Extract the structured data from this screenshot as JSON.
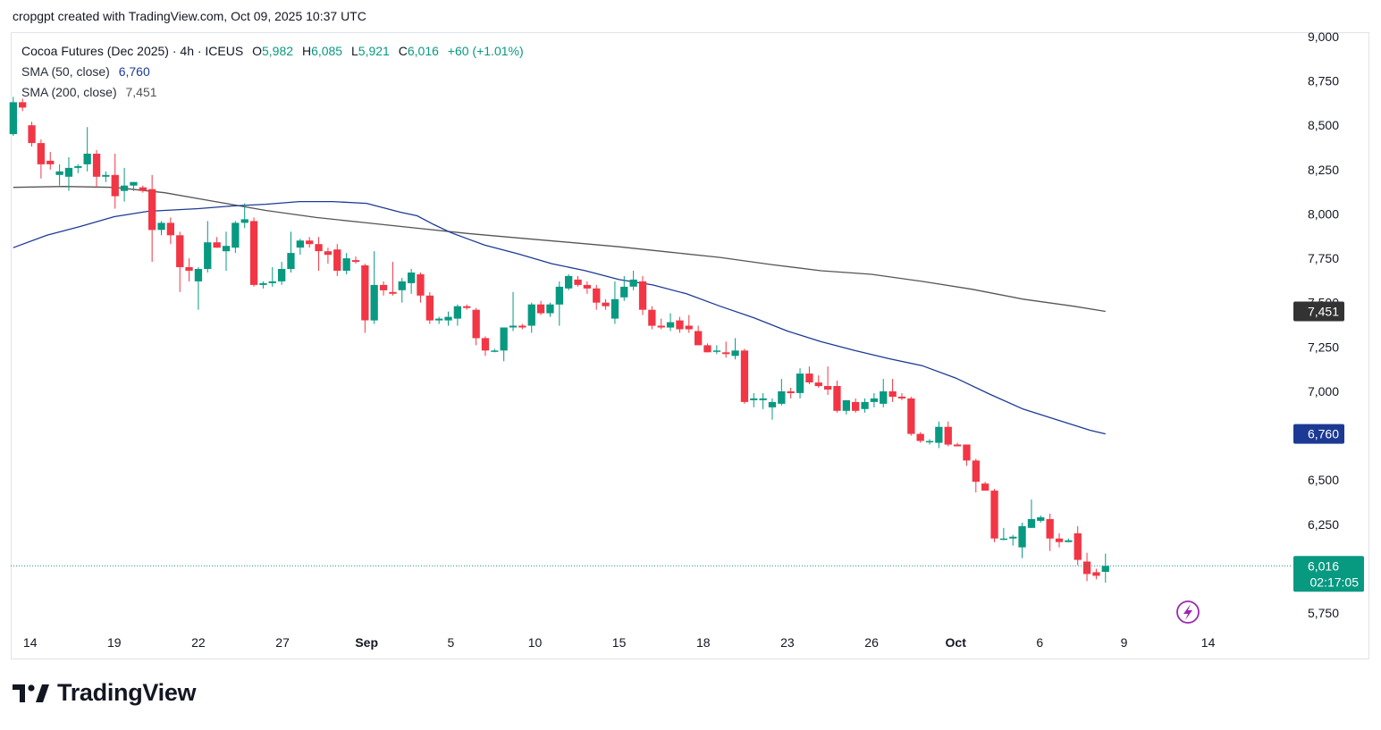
{
  "header": {
    "attribution": "cropgpt created with TradingView.com, Oct 09, 2025 10:37 UTC"
  },
  "legend": {
    "symbol": "Cocoa Futures (Dec 2025) · 4h · ICEUS",
    "o_label": "O",
    "o_value": "5,982",
    "h_label": "H",
    "h_value": "6,085",
    "l_label": "L",
    "l_value": "5,921",
    "c_label": "C",
    "c_value": "6,016",
    "change": "+60 (+1.01%)",
    "sma50_label": "SMA (50, close)",
    "sma50_value": "6,760",
    "sma200_label": "SMA (200, close)",
    "sma200_value": "7,451"
  },
  "price_tags": {
    "sma200": "7,451",
    "sma50": "6,760",
    "last": "6,016",
    "countdown": "02:17:05"
  },
  "brand": {
    "name": "TradingView"
  },
  "colors": {
    "up": "#089981",
    "down": "#f23645",
    "sma50": "#1c3a94",
    "sma200": "#555555",
    "last_tag": "#089981",
    "sma50_tag": "#1c3a94",
    "sma200_tag": "#333333"
  },
  "chart_data": {
    "type": "candlestick",
    "title": "Cocoa Futures (Dec 2025) · 4h · ICEUS",
    "y_ticks": [
      "9,000",
      "8,750",
      "8,500",
      "8,250",
      "8,000",
      "7,750",
      "7,500",
      "7,250",
      "7,000",
      "6,750",
      "6,500",
      "6,250",
      "6,000",
      "5,750"
    ],
    "ylim": [
      5680,
      9020
    ],
    "x_ticks": [
      {
        "label": "14",
        "x": 0.0,
        "bold": false
      },
      {
        "label": "19",
        "x": 5.0,
        "bold": false
      },
      {
        "label": "22",
        "x": 10.0,
        "bold": false
      },
      {
        "label": "27",
        "x": 15.0,
        "bold": false
      },
      {
        "label": "Sep",
        "x": 20.0,
        "bold": true
      },
      {
        "label": "5",
        "x": 25.0,
        "bold": false
      },
      {
        "label": "10",
        "x": 30.0,
        "bold": false
      },
      {
        "label": "15",
        "x": 35.0,
        "bold": false
      },
      {
        "label": "18",
        "x": 40.0,
        "bold": false
      },
      {
        "label": "23",
        "x": 45.0,
        "bold": false
      },
      {
        "label": "26",
        "x": 50.0,
        "bold": false
      },
      {
        "label": "Oct",
        "x": 55.0,
        "bold": true
      },
      {
        "label": "6",
        "x": 60.0,
        "bold": false
      },
      {
        "label": "9",
        "x": 65.0,
        "bold": false
      },
      {
        "label": "14",
        "x": 70.0,
        "bold": false
      }
    ],
    "xlim": [
      -1.15,
      74.8
    ],
    "candles": [
      {
        "x": -1.0,
        "o": 8450,
        "h": 8660,
        "l": 8440,
        "c": 8630
      },
      {
        "x": -0.45,
        "o": 8630,
        "h": 8650,
        "l": 8580,
        "c": 8600
      },
      {
        "x": 0.1,
        "o": 8500,
        "h": 8520,
        "l": 8380,
        "c": 8400
      },
      {
        "x": 0.65,
        "o": 8400,
        "h": 8420,
        "l": 8200,
        "c": 8280
      },
      {
        "x": 1.2,
        "o": 8300,
        "h": 8350,
        "l": 8250,
        "c": 8280
      },
      {
        "x": 1.75,
        "o": 8220,
        "h": 8280,
        "l": 8160,
        "c": 8240
      },
      {
        "x": 2.3,
        "o": 8210,
        "h": 8320,
        "l": 8130,
        "c": 8260
      },
      {
        "x": 2.85,
        "o": 8260,
        "h": 8280,
        "l": 8230,
        "c": 8270
      },
      {
        "x": 3.4,
        "o": 8280,
        "h": 8490,
        "l": 8240,
        "c": 8340
      },
      {
        "x": 3.95,
        "o": 8340,
        "h": 8360,
        "l": 8150,
        "c": 8210
      },
      {
        "x": 4.5,
        "o": 8210,
        "h": 8240,
        "l": 8180,
        "c": 8220
      },
      {
        "x": 5.05,
        "o": 8220,
        "h": 8340,
        "l": 8030,
        "c": 8100
      },
      {
        "x": 5.6,
        "o": 8130,
        "h": 8260,
        "l": 8070,
        "c": 8160
      },
      {
        "x": 6.15,
        "o": 8160,
        "h": 8180,
        "l": 8130,
        "c": 8180
      },
      {
        "x": 6.7,
        "o": 8150,
        "h": 8160,
        "l": 8120,
        "c": 8130
      },
      {
        "x": 7.25,
        "o": 8140,
        "h": 8220,
        "l": 7730,
        "c": 7910
      },
      {
        "x": 7.8,
        "o": 7910,
        "h": 7960,
        "l": 7880,
        "c": 7950
      },
      {
        "x": 8.35,
        "o": 7950,
        "h": 7980,
        "l": 7830,
        "c": 7880
      },
      {
        "x": 8.9,
        "o": 7880,
        "h": 7900,
        "l": 7560,
        "c": 7700
      },
      {
        "x": 9.45,
        "o": 7700,
        "h": 7750,
        "l": 7620,
        "c": 7680
      },
      {
        "x": 10.0,
        "o": 7620,
        "h": 7700,
        "l": 7460,
        "c": 7690
      },
      {
        "x": 10.55,
        "o": 7690,
        "h": 7960,
        "l": 7670,
        "c": 7840
      },
      {
        "x": 11.1,
        "o": 7840,
        "h": 7870,
        "l": 7810,
        "c": 7810
      },
      {
        "x": 11.65,
        "o": 7790,
        "h": 7900,
        "l": 7680,
        "c": 7820
      },
      {
        "x": 12.2,
        "o": 7810,
        "h": 7960,
        "l": 7780,
        "c": 7950
      },
      {
        "x": 12.75,
        "o": 7950,
        "h": 8060,
        "l": 7920,
        "c": 7970
      },
      {
        "x": 13.3,
        "o": 7960,
        "h": 7980,
        "l": 7590,
        "c": 7600
      },
      {
        "x": 13.85,
        "o": 7600,
        "h": 7620,
        "l": 7580,
        "c": 7610
      },
      {
        "x": 14.4,
        "o": 7610,
        "h": 7700,
        "l": 7590,
        "c": 7620
      },
      {
        "x": 14.95,
        "o": 7620,
        "h": 7730,
        "l": 7600,
        "c": 7690
      },
      {
        "x": 15.5,
        "o": 7690,
        "h": 7900,
        "l": 7670,
        "c": 7780
      },
      {
        "x": 16.05,
        "o": 7810,
        "h": 7860,
        "l": 7770,
        "c": 7850
      },
      {
        "x": 16.6,
        "o": 7850,
        "h": 7870,
        "l": 7810,
        "c": 7830
      },
      {
        "x": 17.15,
        "o": 7830,
        "h": 7870,
        "l": 7680,
        "c": 7790
      },
      {
        "x": 17.7,
        "o": 7790,
        "h": 7810,
        "l": 7720,
        "c": 7770
      },
      {
        "x": 18.25,
        "o": 7800,
        "h": 7830,
        "l": 7650,
        "c": 7680
      },
      {
        "x": 18.8,
        "o": 7680,
        "h": 7780,
        "l": 7660,
        "c": 7750
      },
      {
        "x": 19.35,
        "o": 7740,
        "h": 7760,
        "l": 7720,
        "c": 7730
      },
      {
        "x": 19.9,
        "o": 7710,
        "h": 7720,
        "l": 7330,
        "c": 7400
      },
      {
        "x": 20.45,
        "o": 7400,
        "h": 7790,
        "l": 7380,
        "c": 7600
      },
      {
        "x": 21.0,
        "o": 7600,
        "h": 7620,
        "l": 7540,
        "c": 7570
      },
      {
        "x": 21.55,
        "o": 7560,
        "h": 7730,
        "l": 7540,
        "c": 7550
      },
      {
        "x": 22.1,
        "o": 7570,
        "h": 7640,
        "l": 7500,
        "c": 7620
      },
      {
        "x": 22.65,
        "o": 7610,
        "h": 7690,
        "l": 7550,
        "c": 7670
      },
      {
        "x": 23.2,
        "o": 7660,
        "h": 7670,
        "l": 7500,
        "c": 7540
      },
      {
        "x": 23.75,
        "o": 7540,
        "h": 7560,
        "l": 7380,
        "c": 7400
      },
      {
        "x": 24.3,
        "o": 7400,
        "h": 7420,
        "l": 7380,
        "c": 7410
      },
      {
        "x": 24.85,
        "o": 7400,
        "h": 7450,
        "l": 7370,
        "c": 7420
      },
      {
        "x": 25.4,
        "o": 7410,
        "h": 7490,
        "l": 7370,
        "c": 7480
      },
      {
        "x": 25.95,
        "o": 7480,
        "h": 7490,
        "l": 7460,
        "c": 7470
      },
      {
        "x": 26.5,
        "o": 7460,
        "h": 7470,
        "l": 7260,
        "c": 7300
      },
      {
        "x": 27.05,
        "o": 7300,
        "h": 7310,
        "l": 7200,
        "c": 7230
      },
      {
        "x": 27.6,
        "o": 7230,
        "h": 7240,
        "l": 7220,
        "c": 7230
      },
      {
        "x": 28.15,
        "o": 7230,
        "h": 7340,
        "l": 7170,
        "c": 7360
      },
      {
        "x": 28.7,
        "o": 7360,
        "h": 7560,
        "l": 7340,
        "c": 7370
      },
      {
        "x": 29.25,
        "o": 7370,
        "h": 7380,
        "l": 7350,
        "c": 7360
      },
      {
        "x": 29.8,
        "o": 7370,
        "h": 7500,
        "l": 7330,
        "c": 7490
      },
      {
        "x": 30.35,
        "o": 7490,
        "h": 7510,
        "l": 7430,
        "c": 7440
      },
      {
        "x": 30.9,
        "o": 7440,
        "h": 7500,
        "l": 7420,
        "c": 7490
      },
      {
        "x": 31.45,
        "o": 7490,
        "h": 7620,
        "l": 7370,
        "c": 7590
      },
      {
        "x": 32.0,
        "o": 7580,
        "h": 7660,
        "l": 7570,
        "c": 7650
      },
      {
        "x": 32.55,
        "o": 7630,
        "h": 7650,
        "l": 7590,
        "c": 7600
      },
      {
        "x": 33.1,
        "o": 7600,
        "h": 7620,
        "l": 7550,
        "c": 7580
      },
      {
        "x": 33.65,
        "o": 7580,
        "h": 7600,
        "l": 7460,
        "c": 7500
      },
      {
        "x": 34.2,
        "o": 7500,
        "h": 7520,
        "l": 7460,
        "c": 7480
      },
      {
        "x": 34.75,
        "o": 7410,
        "h": 7620,
        "l": 7380,
        "c": 7520
      },
      {
        "x": 35.3,
        "o": 7530,
        "h": 7650,
        "l": 7510,
        "c": 7590
      },
      {
        "x": 35.85,
        "o": 7590,
        "h": 7680,
        "l": 7570,
        "c": 7630
      },
      {
        "x": 36.4,
        "o": 7620,
        "h": 7650,
        "l": 7430,
        "c": 7460
      },
      {
        "x": 36.95,
        "o": 7460,
        "h": 7480,
        "l": 7350,
        "c": 7370
      },
      {
        "x": 37.5,
        "o": 7370,
        "h": 7410,
        "l": 7350,
        "c": 7360
      },
      {
        "x": 38.05,
        "o": 7360,
        "h": 7440,
        "l": 7340,
        "c": 7390
      },
      {
        "x": 38.6,
        "o": 7400,
        "h": 7420,
        "l": 7330,
        "c": 7350
      },
      {
        "x": 39.15,
        "o": 7370,
        "h": 7430,
        "l": 7330,
        "c": 7350
      },
      {
        "x": 39.7,
        "o": 7340,
        "h": 7370,
        "l": 7260,
        "c": 7260
      },
      {
        "x": 40.25,
        "o": 7260,
        "h": 7270,
        "l": 7220,
        "c": 7220
      },
      {
        "x": 40.8,
        "o": 7230,
        "h": 7260,
        "l": 7210,
        "c": 7230
      },
      {
        "x": 41.35,
        "o": 7220,
        "h": 7280,
        "l": 7190,
        "c": 7210
      },
      {
        "x": 41.9,
        "o": 7200,
        "h": 7300,
        "l": 7180,
        "c": 7230
      },
      {
        "x": 42.45,
        "o": 7230,
        "h": 7240,
        "l": 6930,
        "c": 6940
      },
      {
        "x": 43.0,
        "o": 6950,
        "h": 6990,
        "l": 6910,
        "c": 6960
      },
      {
        "x": 43.55,
        "o": 6950,
        "h": 6990,
        "l": 6900,
        "c": 6960
      },
      {
        "x": 44.1,
        "o": 6910,
        "h": 6960,
        "l": 6840,
        "c": 6940
      },
      {
        "x": 44.65,
        "o": 6930,
        "h": 7070,
        "l": 6920,
        "c": 7000
      },
      {
        "x": 45.2,
        "o": 7000,
        "h": 7020,
        "l": 6960,
        "c": 6990
      },
      {
        "x": 45.75,
        "o": 6990,
        "h": 7130,
        "l": 6960,
        "c": 7100
      },
      {
        "x": 46.3,
        "o": 7100,
        "h": 7140,
        "l": 7040,
        "c": 7050
      },
      {
        "x": 46.85,
        "o": 7050,
        "h": 7090,
        "l": 7020,
        "c": 7030
      },
      {
        "x": 47.4,
        "o": 7030,
        "h": 7140,
        "l": 6980,
        "c": 7010
      },
      {
        "x": 47.95,
        "o": 7030,
        "h": 7060,
        "l": 6880,
        "c": 6890
      },
      {
        "x": 48.5,
        "o": 6890,
        "h": 6950,
        "l": 6870,
        "c": 6950
      },
      {
        "x": 49.05,
        "o": 6940,
        "h": 6960,
        "l": 6880,
        "c": 6890
      },
      {
        "x": 49.6,
        "o": 6900,
        "h": 6960,
        "l": 6880,
        "c": 6940
      },
      {
        "x": 50.15,
        "o": 6940,
        "h": 6990,
        "l": 6910,
        "c": 6960
      },
      {
        "x": 50.7,
        "o": 6930,
        "h": 7070,
        "l": 6910,
        "c": 7000
      },
      {
        "x": 51.25,
        "o": 7000,
        "h": 7070,
        "l": 6940,
        "c": 6970
      },
      {
        "x": 51.8,
        "o": 6970,
        "h": 6990,
        "l": 6950,
        "c": 6960
      },
      {
        "x": 52.35,
        "o": 6960,
        "h": 6970,
        "l": 6750,
        "c": 6760
      },
      {
        "x": 52.9,
        "o": 6760,
        "h": 6770,
        "l": 6710,
        "c": 6720
      },
      {
        "x": 53.45,
        "o": 6720,
        "h": 6730,
        "l": 6700,
        "c": 6720
      },
      {
        "x": 54.0,
        "o": 6710,
        "h": 6830,
        "l": 6680,
        "c": 6800
      },
      {
        "x": 54.55,
        "o": 6800,
        "h": 6830,
        "l": 6690,
        "c": 6700
      },
      {
        "x": 55.1,
        "o": 6700,
        "h": 6710,
        "l": 6690,
        "c": 6690
      },
      {
        "x": 55.65,
        "o": 6700,
        "h": 6700,
        "l": 6580,
        "c": 6610
      },
      {
        "x": 56.2,
        "o": 6610,
        "h": 6620,
        "l": 6430,
        "c": 6490
      },
      {
        "x": 56.75,
        "o": 6480,
        "h": 6490,
        "l": 6440,
        "c": 6440
      },
      {
        "x": 57.3,
        "o": 6440,
        "h": 6450,
        "l": 6150,
        "c": 6170
      },
      {
        "x": 57.85,
        "o": 6170,
        "h": 6230,
        "l": 6160,
        "c": 6170
      },
      {
        "x": 58.4,
        "o": 6170,
        "h": 6190,
        "l": 6130,
        "c": 6180
      },
      {
        "x": 58.95,
        "o": 6120,
        "h": 6260,
        "l": 6060,
        "c": 6240
      },
      {
        "x": 59.5,
        "o": 6230,
        "h": 6390,
        "l": 6230,
        "c": 6280
      },
      {
        "x": 60.05,
        "o": 6270,
        "h": 6300,
        "l": 6260,
        "c": 6290
      },
      {
        "x": 60.6,
        "o": 6280,
        "h": 6310,
        "l": 6100,
        "c": 6170
      },
      {
        "x": 61.15,
        "o": 6170,
        "h": 6200,
        "l": 6120,
        "c": 6150
      },
      {
        "x": 61.7,
        "o": 6150,
        "h": 6170,
        "l": 6150,
        "c": 6160
      },
      {
        "x": 62.25,
        "o": 6200,
        "h": 6240,
        "l": 6020,
        "c": 6050
      },
      {
        "x": 62.8,
        "o": 6040,
        "h": 6090,
        "l": 5930,
        "c": 5970
      },
      {
        "x": 63.35,
        "o": 5980,
        "h": 6000,
        "l": 5940,
        "c": 5960
      },
      {
        "x": 63.9,
        "o": 5982,
        "h": 6085,
        "l": 5921,
        "c": 6016
      }
    ],
    "sma50": [
      [
        -1.0,
        7810
      ],
      [
        1.0,
        7880
      ],
      [
        3.0,
        7930
      ],
      [
        5.0,
        7985
      ],
      [
        7.0,
        8015
      ],
      [
        10.0,
        8030
      ],
      [
        12.0,
        8045
      ],
      [
        14.0,
        8055
      ],
      [
        16.0,
        8070
      ],
      [
        18.0,
        8070
      ],
      [
        20.0,
        8060
      ],
      [
        22.0,
        8010
      ],
      [
        23.0,
        7990
      ],
      [
        24.0,
        7940
      ],
      [
        25.0,
        7895
      ],
      [
        26.0,
        7860
      ],
      [
        27.0,
        7825
      ],
      [
        29.0,
        7775
      ],
      [
        31.0,
        7720
      ],
      [
        33.0,
        7680
      ],
      [
        35.0,
        7630
      ],
      [
        37.0,
        7600
      ],
      [
        39.0,
        7550
      ],
      [
        41.0,
        7480
      ],
      [
        43.0,
        7415
      ],
      [
        45.0,
        7340
      ],
      [
        47.0,
        7280
      ],
      [
        49.0,
        7230
      ],
      [
        51.0,
        7185
      ],
      [
        53.0,
        7145
      ],
      [
        55.0,
        7075
      ],
      [
        57.0,
        6985
      ],
      [
        59.0,
        6900
      ],
      [
        61.0,
        6840
      ],
      [
        63.0,
        6780
      ],
      [
        63.9,
        6760
      ]
    ],
    "sma200": [
      [
        -1.0,
        8150
      ],
      [
        2.0,
        8155
      ],
      [
        5.0,
        8150
      ],
      [
        8.0,
        8120
      ],
      [
        11.0,
        8070
      ],
      [
        14.0,
        8020
      ],
      [
        17.0,
        7980
      ],
      [
        20.0,
        7950
      ],
      [
        23.0,
        7920
      ],
      [
        26.0,
        7890
      ],
      [
        29.0,
        7865
      ],
      [
        32.0,
        7840
      ],
      [
        35.0,
        7815
      ],
      [
        38.0,
        7785
      ],
      [
        41.0,
        7755
      ],
      [
        44.0,
        7715
      ],
      [
        47.0,
        7680
      ],
      [
        50.0,
        7660
      ],
      [
        53.0,
        7620
      ],
      [
        56.0,
        7575
      ],
      [
        59.0,
        7520
      ],
      [
        62.0,
        7480
      ],
      [
        63.9,
        7451
      ]
    ]
  }
}
